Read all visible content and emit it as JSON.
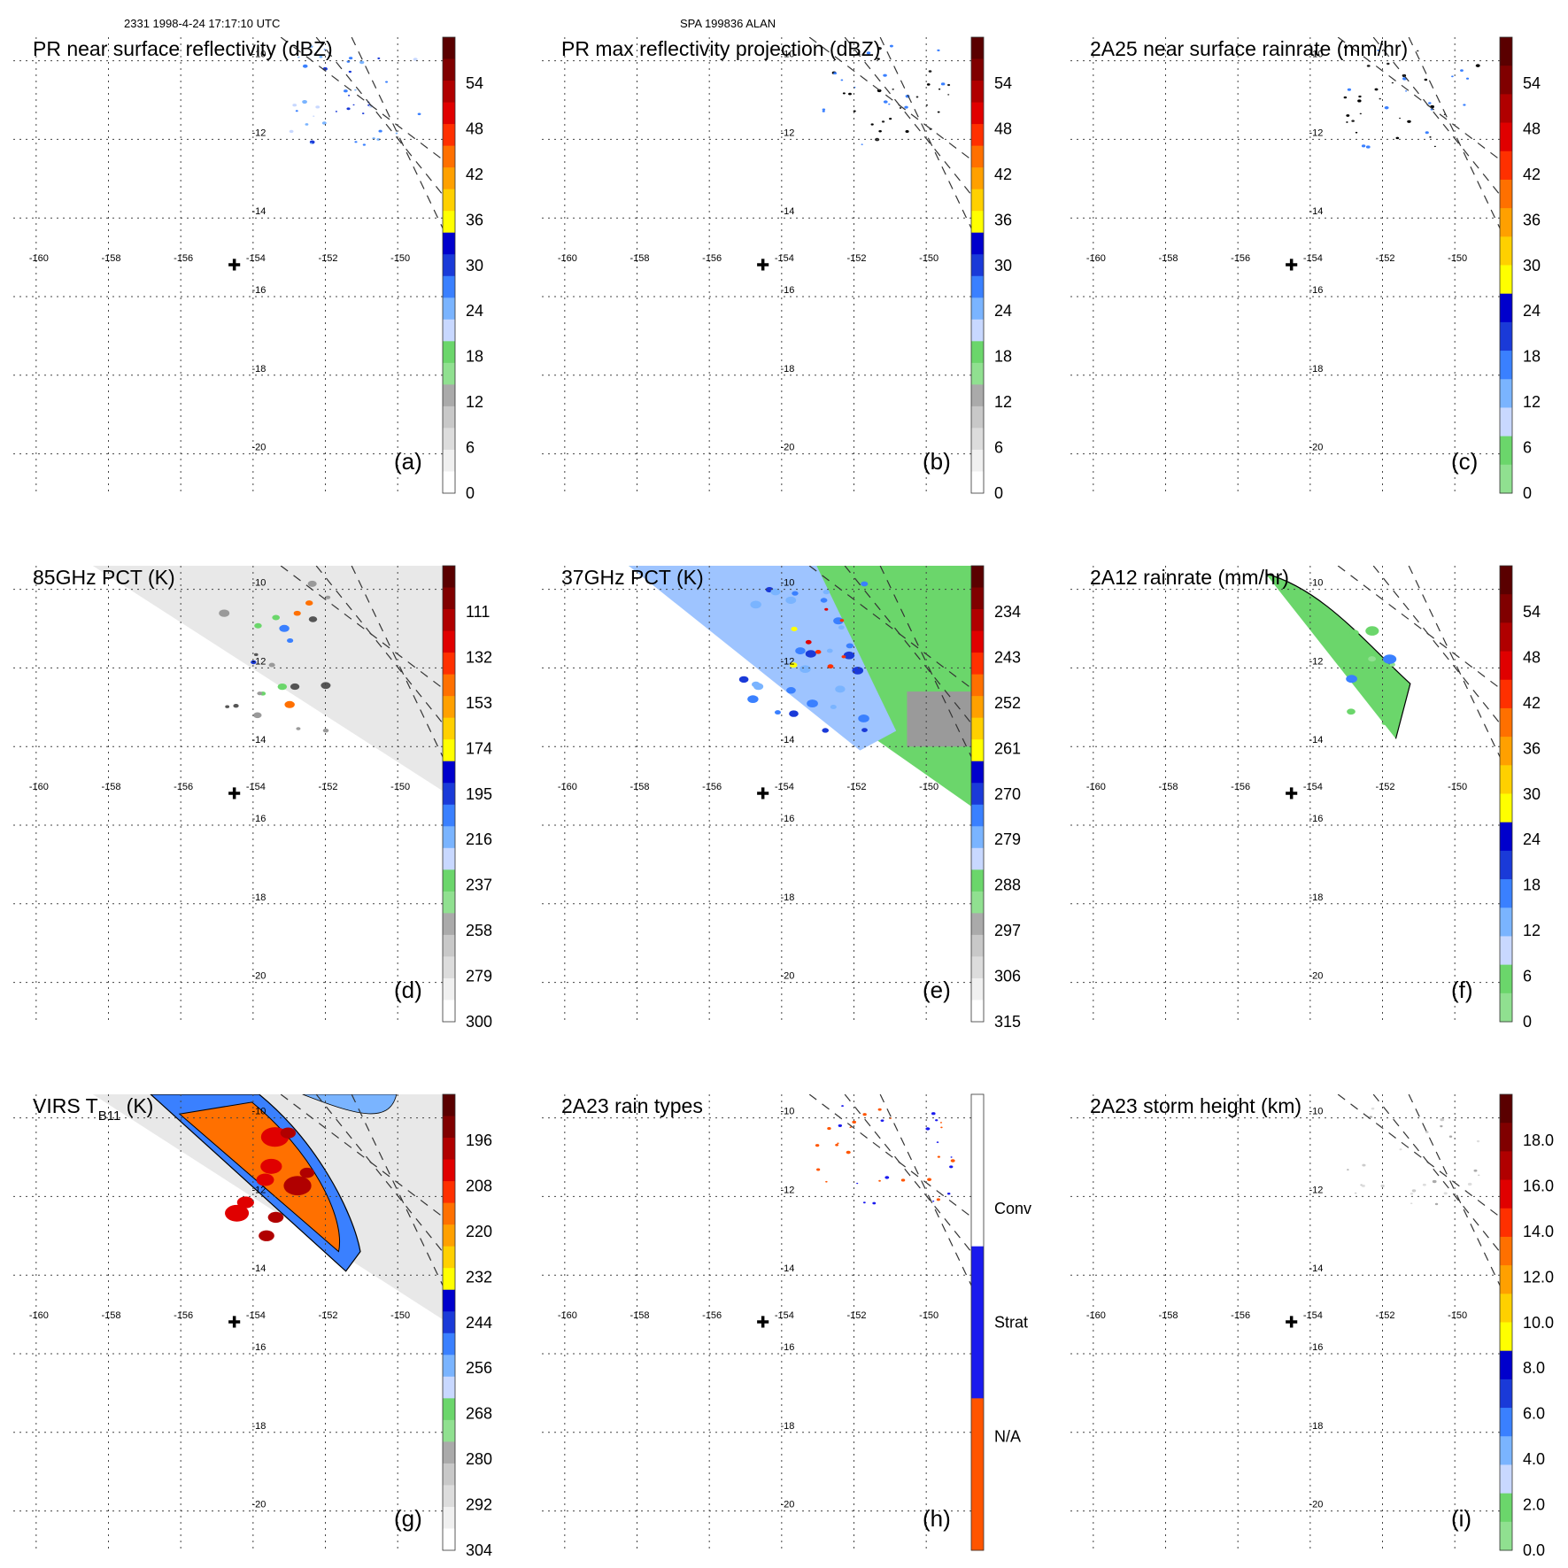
{
  "header": {
    "left": "2331 1998-4-24 17:17:10 UTC",
    "center": "SPA 199836 ALAN"
  },
  "chart_data": {
    "type": "heatmap",
    "grid": {
      "lon_ticks": [
        -160,
        -158,
        -156,
        -154,
        -152,
        -150
      ],
      "lat_ticks": [
        -10,
        -12,
        -14,
        -16,
        -18,
        -20
      ],
      "lon_range": [
        -161,
        -149
      ],
      "lat_range": [
        -21,
        -9.4
      ],
      "center_marker": {
        "lon": -154.9,
        "lat": -15.2,
        "symbol": "✚"
      }
    },
    "panels": [
      {
        "id": "a",
        "title": "PR near surface reflectivity (dBZ)",
        "label": "(a)",
        "colorbar": {
          "ticks": [
            "54",
            "48",
            "42",
            "36",
            "30",
            "24",
            "18",
            "12",
            "6",
            "0"
          ],
          "scheme": "refl"
        },
        "content": "pr_swath",
        "swath_lines": true
      },
      {
        "id": "b",
        "title": "PR max reflectivity projection (dBZ)",
        "label": "(b)",
        "colorbar": {
          "ticks": [
            "54",
            "48",
            "42",
            "36",
            "30",
            "24",
            "18",
            "12",
            "6",
            "0"
          ],
          "scheme": "refl"
        },
        "content": "pr_swath_dark",
        "swath_lines": true
      },
      {
        "id": "c",
        "title": "2A25 near surface rainrate (mm/hr)",
        "label": "(c)",
        "colorbar": {
          "ticks": [
            "54",
            "48",
            "42",
            "36",
            "30",
            "24",
            "18",
            "12",
            "6",
            "0"
          ],
          "scheme": "rain"
        },
        "content": "pr_swath_dark",
        "swath_lines": true
      },
      {
        "id": "d",
        "title": "85GHz PCT (K)",
        "label": "(d)",
        "colorbar": {
          "ticks": [
            "111",
            "132",
            "153",
            "174",
            "195",
            "216",
            "237",
            "258",
            "279",
            "300"
          ],
          "scheme": "pct"
        },
        "content": "pct85",
        "swath_lines": true
      },
      {
        "id": "e",
        "title": "37GHz PCT (K)",
        "label": "(e)",
        "colorbar": {
          "ticks": [
            "234",
            "243",
            "252",
            "261",
            "270",
            "279",
            "288",
            "297",
            "306",
            "315"
          ],
          "scheme": "pct"
        },
        "content": "pct37",
        "swath_lines": true
      },
      {
        "id": "f",
        "title": "2A12 rainrate (mm/hr)",
        "label": "(f)",
        "colorbar": {
          "ticks": [
            "54",
            "48",
            "42",
            "36",
            "30",
            "24",
            "18",
            "12",
            "6",
            "0"
          ],
          "scheme": "rain"
        },
        "content": "rain2a12",
        "swath_lines": true
      },
      {
        "id": "g",
        "title_main": "VIRS T",
        "title_sub": "B11",
        "title_end": " (K)",
        "label": "(g)",
        "colorbar": {
          "ticks": [
            "196",
            "208",
            "220",
            "232",
            "244",
            "256",
            "268",
            "280",
            "292",
            "304"
          ],
          "scheme": "pct"
        },
        "content": "virs",
        "swath_lines": true
      },
      {
        "id": "h",
        "title": "2A23 rain types",
        "label": "(h)",
        "colorbar": {
          "ticks": [
            "Conv",
            "Strat",
            "N/A"
          ],
          "scheme": "types"
        },
        "content": "raintypes",
        "swath_lines": true
      },
      {
        "id": "i",
        "title": "2A23 storm height (km)",
        "label": "(i)",
        "colorbar": {
          "ticks": [
            "18.0",
            "16.0",
            "14.0",
            "12.0",
            "10.0",
            "8.0",
            "6.0",
            "4.0",
            "2.0",
            "0.0"
          ],
          "scheme": "rain"
        },
        "content": "height",
        "swath_lines": true
      }
    ],
    "colors": {
      "refl": [
        "#ffffff",
        "#f0f0f0",
        "#dcdcdc",
        "#c8c8c8",
        "#aaaaaa",
        "#90e090",
        "#6bd66b",
        "#c8d8ff",
        "#7ab4ff",
        "#3a80ff",
        "#1a3ad8",
        "#0000cc",
        "#ffff00",
        "#ffd000",
        "#ffa000",
        "#ff7000",
        "#ff3000",
        "#e00000",
        "#b00000",
        "#800000",
        "#5a0000"
      ],
      "rain": [
        "#90e090",
        "#6bd66b",
        "#c8d8ff",
        "#7ab4ff",
        "#3a80ff",
        "#1a3ad8",
        "#0000cc",
        "#ffff00",
        "#ffd000",
        "#ffa000",
        "#ff7000",
        "#ff3000",
        "#e00000",
        "#b00000",
        "#800000",
        "#5a0000"
      ],
      "pct": [
        "#5a0000",
        "#800000",
        "#b00000",
        "#e00000",
        "#ff3000",
        "#ff7000",
        "#ffa000",
        "#ffd000",
        "#ffff00",
        "#0000cc",
        "#1a3ad8",
        "#3a80ff",
        "#7ab4ff",
        "#c8d8ff",
        "#6bd66b",
        "#90e090",
        "#aaaaaa",
        "#c8c8c8",
        "#dcdcdc",
        "#f0f0f0",
        "#ffffff"
      ],
      "types": [
        "#ff5500",
        "#1a1aee",
        "#ffffff"
      ]
    }
  }
}
